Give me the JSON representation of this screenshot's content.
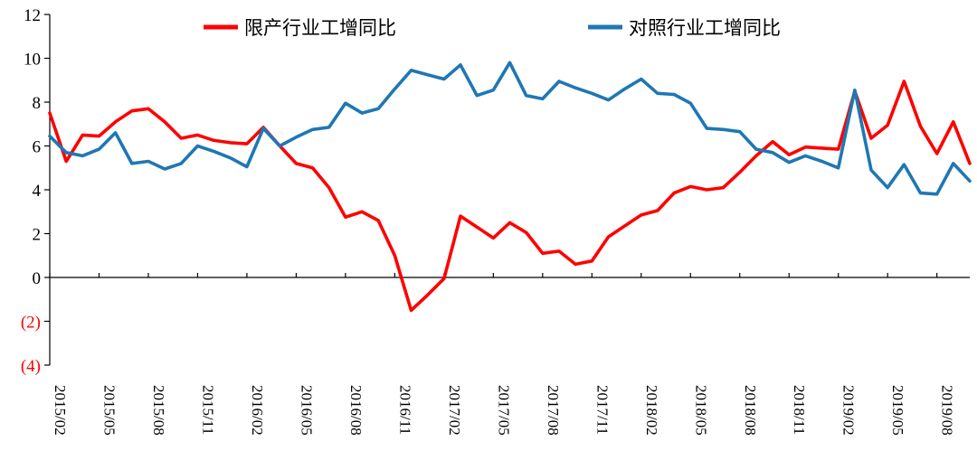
{
  "chart_data": {
    "type": "line",
    "title": "",
    "xlabel": "",
    "ylabel": "",
    "ylim": [
      -4,
      12
    ],
    "yticks": [
      {
        "value": 12,
        "label": "12",
        "color": "#000000"
      },
      {
        "value": 10,
        "label": "10",
        "color": "#000000"
      },
      {
        "value": 8,
        "label": "8",
        "color": "#000000"
      },
      {
        "value": 6,
        "label": "6",
        "color": "#000000"
      },
      {
        "value": 4,
        "label": "4",
        "color": "#000000"
      },
      {
        "value": 2,
        "label": "2",
        "color": "#000000"
      },
      {
        "value": 0,
        "label": "0",
        "color": "#000000"
      },
      {
        "value": -2,
        "label": "(2)",
        "color": "#ff0000"
      },
      {
        "value": -4,
        "label": "(4)",
        "color": "#ff0000"
      }
    ],
    "x_tick_labels": [
      "2015/02",
      "2015/05",
      "2015/08",
      "2015/11",
      "2016/02",
      "2016/05",
      "2016/08",
      "2016/11",
      "2017/02",
      "2017/05",
      "2017/08",
      "2017/11",
      "2018/02",
      "2018/05",
      "2018/08",
      "2018/11",
      "2019/02",
      "2019/05",
      "2019/08"
    ],
    "x": [
      "2015/02",
      "2015/03",
      "2015/04",
      "2015/05",
      "2015/06",
      "2015/07",
      "2015/08",
      "2015/09",
      "2015/10",
      "2015/11",
      "2015/12",
      "2016/01",
      "2016/02",
      "2016/03",
      "2016/04",
      "2016/05",
      "2016/06",
      "2016/07",
      "2016/08",
      "2016/09",
      "2016/10",
      "2016/11",
      "2016/12",
      "2017/01",
      "2017/02",
      "2017/03",
      "2017/04",
      "2017/05",
      "2017/06",
      "2017/07",
      "2017/08",
      "2017/09",
      "2017/10",
      "2017/11",
      "2017/12",
      "2018/01",
      "2018/02",
      "2018/03",
      "2018/04",
      "2018/05",
      "2018/06",
      "2018/07",
      "2018/08",
      "2018/09",
      "2018/10",
      "2018/11",
      "2018/12",
      "2019/01",
      "2019/02",
      "2019/03",
      "2019/04",
      "2019/05",
      "2019/06",
      "2019/07",
      "2019/08",
      "2019/09",
      "2019/10"
    ],
    "series": [
      {
        "name": "限产行业工增同比",
        "color": "#ff0000",
        "values": [
          7.5,
          5.3,
          6.5,
          6.45,
          7.1,
          7.6,
          7.7,
          7.1,
          6.35,
          6.5,
          6.25,
          6.15,
          6.1,
          6.85,
          6.0,
          5.2,
          5.0,
          4.1,
          2.75,
          3.0,
          2.6,
          1.0,
          -1.5,
          -0.8,
          -0.05,
          2.8,
          2.3,
          1.8,
          2.5,
          2.05,
          1.1,
          1.2,
          0.6,
          0.75,
          1.85,
          2.35,
          2.85,
          3.05,
          3.85,
          4.15,
          4.0,
          4.1,
          4.8,
          5.55,
          6.2,
          5.6,
          5.95,
          5.9,
          5.85,
          8.5,
          6.35,
          6.95,
          8.95,
          6.9,
          5.65,
          7.1,
          5.2
        ]
      },
      {
        "name": "对照行业工增同比",
        "color": "#1f77b4",
        "values": [
          6.45,
          5.7,
          5.55,
          5.85,
          6.6,
          5.2,
          5.3,
          4.95,
          5.2,
          6.0,
          5.75,
          5.45,
          5.05,
          6.8,
          6.0,
          6.4,
          6.75,
          6.85,
          7.95,
          7.5,
          7.7,
          8.6,
          9.45,
          9.25,
          9.05,
          9.7,
          8.3,
          8.55,
          9.8,
          8.3,
          8.15,
          8.95,
          8.65,
          8.4,
          8.1,
          8.6,
          9.05,
          8.4,
          8.35,
          7.95,
          6.8,
          6.75,
          6.65,
          5.85,
          5.7,
          5.25,
          5.55,
          5.3,
          5.0,
          8.55,
          4.9,
          4.1,
          5.15,
          3.85,
          3.8,
          5.2,
          4.4
        ]
      }
    ],
    "legend": "top"
  }
}
